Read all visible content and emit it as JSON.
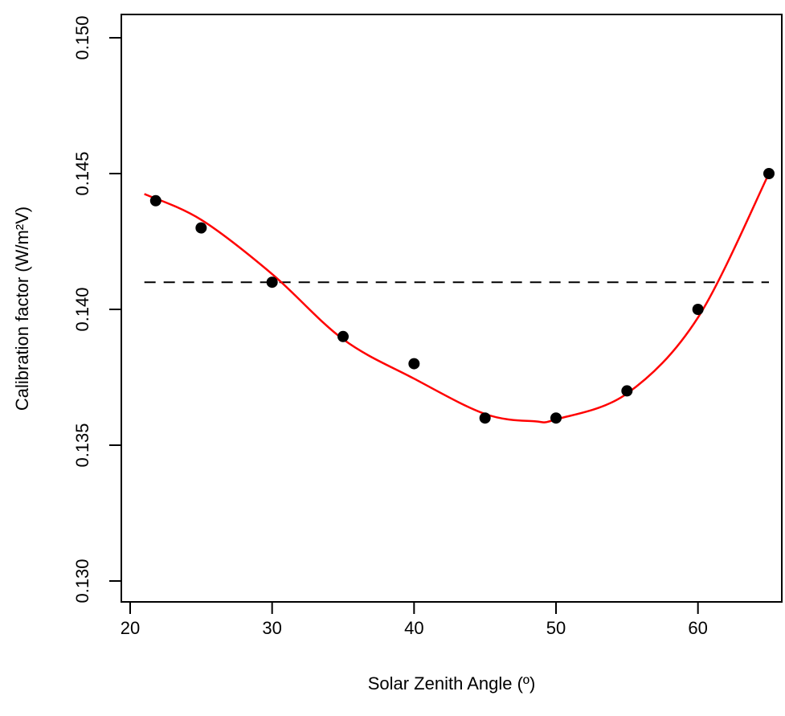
{
  "chart_data": {
    "type": "scatter",
    "title": "",
    "xlabel": "Solar Zenith Angle (º)",
    "ylabel": "Calibration factor (W/m²V)",
    "xlim": [
      20,
      65
    ],
    "ylim": [
      0.13,
      0.15
    ],
    "x_ticks": [
      20,
      30,
      40,
      50,
      60
    ],
    "x_tick_labels": [
      "20",
      "30",
      "40",
      "50",
      "60"
    ],
    "y_ticks": [
      0.13,
      0.135,
      0.14,
      0.145,
      0.15
    ],
    "y_tick_labels": [
      "0.130",
      "0.135",
      "0.140",
      "0.145",
      "0.150"
    ],
    "grid": false,
    "series": [
      {
        "type": "scatter",
        "color": "#000000",
        "x": [
          21.8,
          25,
          30,
          35,
          40,
          45,
          50,
          55,
          60,
          65
        ],
        "y": [
          0.144,
          0.143,
          0.141,
          0.139,
          0.138,
          0.136,
          0.136,
          0.137,
          0.14,
          0.145
        ]
      },
      {
        "type": "line",
        "color": "#ff0000",
        "x": [
          21,
          25,
          30,
          35,
          40,
          45,
          48.5,
          50,
          55,
          60,
          65
        ],
        "y": [
          0.14425,
          0.1433,
          0.1413,
          0.1389,
          0.13745,
          0.13615,
          0.13588,
          0.13595,
          0.1369,
          0.1397,
          0.145
        ]
      },
      {
        "type": "reference-line",
        "color": "#000000",
        "dash": "dashed",
        "x": [
          21,
          65
        ],
        "y": [
          0.141,
          0.141
        ]
      }
    ]
  }
}
